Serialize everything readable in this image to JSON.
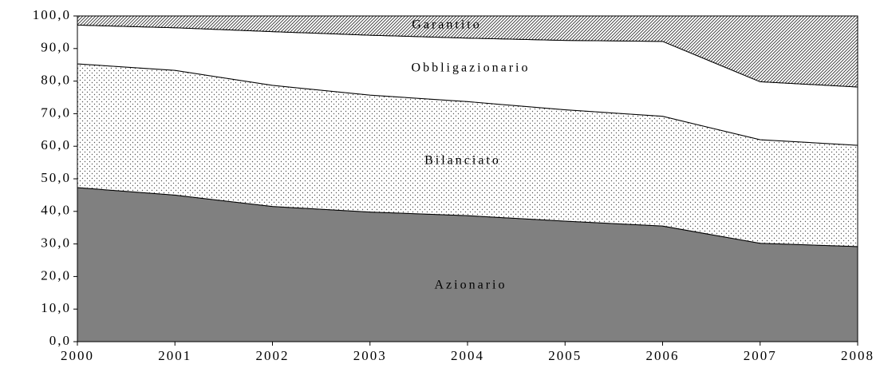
{
  "chart_data": {
    "type": "stacked_area",
    "categories": [
      "2000",
      "2001",
      "2002",
      "2003",
      "2004",
      "2005",
      "2006",
      "2007",
      "2008"
    ],
    "series": [
      {
        "name": "Azionario",
        "color": "#808080",
        "pattern": "solid",
        "values": [
          47.3,
          45.0,
          41.5,
          39.8,
          38.7,
          37.0,
          35.5,
          30.2,
          29.2
        ]
      },
      {
        "name": "Bilanciato",
        "color": "#ffffff",
        "pattern": "dots",
        "values": [
          38.0,
          38.3,
          37.2,
          35.9,
          35.0,
          34.2,
          33.7,
          31.8,
          31.1
        ]
      },
      {
        "name": "Obbligazionario",
        "color": "#ffffff",
        "pattern": "solid",
        "values": [
          11.9,
          13.1,
          16.5,
          18.4,
          19.5,
          21.3,
          23.0,
          17.8,
          17.9
        ]
      },
      {
        "name": "Garantito",
        "color": "#ffffff",
        "pattern": "hatch",
        "values": [
          2.8,
          3.6,
          4.8,
          5.9,
          6.8,
          7.5,
          7.8,
          20.2,
          21.8
        ]
      }
    ],
    "ylim": [
      0,
      100
    ],
    "yticks": [
      {
        "value": 0,
        "label": "0,0"
      },
      {
        "value": 10,
        "label": "10,0"
      },
      {
        "value": 20,
        "label": "20,0"
      },
      {
        "value": 30,
        "label": "30,0"
      },
      {
        "value": 40,
        "label": "40,0"
      },
      {
        "value": 50,
        "label": "50,0"
      },
      {
        "value": 60,
        "label": "60,0"
      },
      {
        "value": 70,
        "label": "70,0"
      },
      {
        "value": 80,
        "label": "80,0"
      },
      {
        "value": 90,
        "label": "90,0"
      },
      {
        "value": 100,
        "label": "100,0"
      }
    ]
  }
}
